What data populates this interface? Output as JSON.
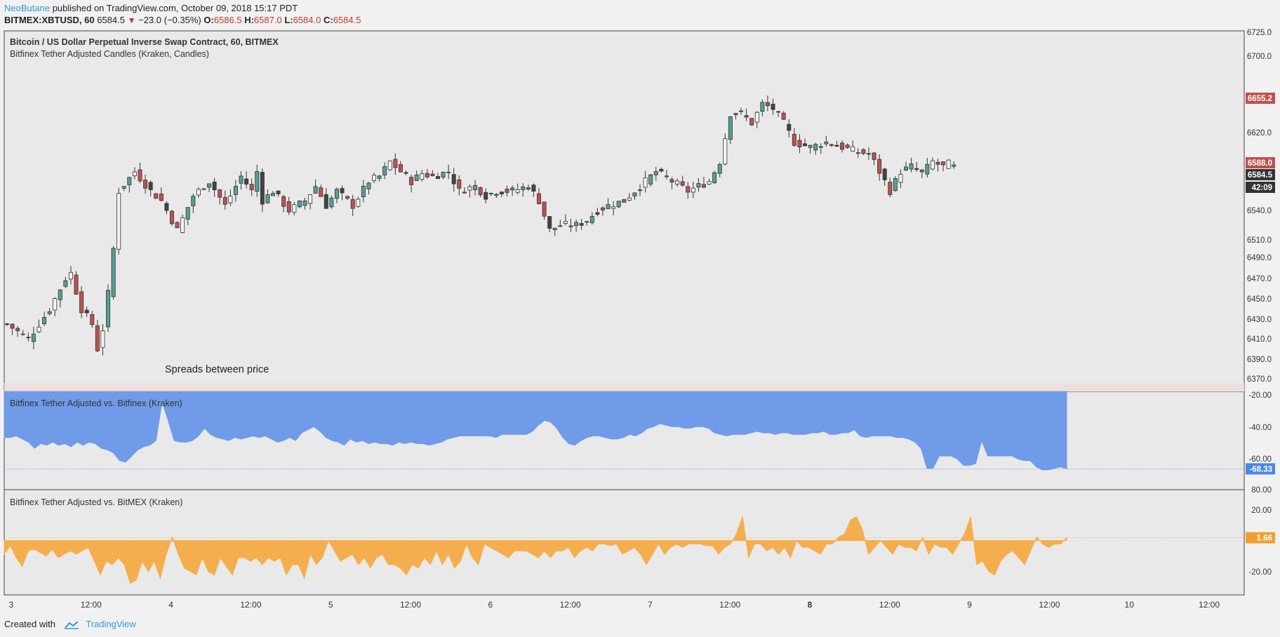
{
  "header": {
    "author": "NeoButane",
    "published": "published on TradingView.com, October 09, 2018 15:17 PDT",
    "symbol": "BITMEX:XBTUSD, 60",
    "last": "6584.5",
    "change": "−23.0 (−0.35%)",
    "o_label": "O:",
    "o": "6586.5",
    "h_label": "H:",
    "h": "6587.0",
    "l_label": "L:",
    "l": "6584.0",
    "c_label": "C:",
    "c": "6584.5"
  },
  "footer": {
    "created_with": "Created with",
    "brand": "TradingView"
  },
  "colors": {
    "up": "#53a193",
    "down": "#c0504d",
    "pane_bg": "#e9e9e9",
    "area_blue": "#6f9be8",
    "area_orange": "#f5ae4e"
  },
  "chart_data": [
    {
      "type": "candlestick",
      "title": "Bitcoin / US Dollar Perpetual Inverse Swap Contract, 60, BITMEX",
      "subtitle": "Bitfinex Tether Adjusted Candles (Kraken, Candles)",
      "annotation": "Spreads between price",
      "ylim": [
        6365,
        6727
      ],
      "y_ticks": [
        "6725.0",
        "6700.0",
        "6620.0",
        "6540.0",
        "6510.0",
        "6490.0",
        "6470.0",
        "6450.0",
        "6430.0",
        "6410.0",
        "6390.0",
        "6370.0"
      ],
      "price_labels": [
        "6655.2",
        "6588.0",
        "6584.5",
        "42:09"
      ],
      "x_ticks": [
        "3",
        "12:00",
        "4",
        "12:00",
        "5",
        "12:00",
        "6",
        "12:00",
        "7",
        "12:00",
        "8",
        "12:00",
        "9",
        "12:00",
        "10",
        "12:00"
      ],
      "close_path": [
        [
          0,
          6425
        ],
        [
          4,
          6410
        ],
        [
          8,
          6440
        ],
        [
          11,
          6470
        ],
        [
          12,
          6475
        ],
        [
          14,
          6440
        ],
        [
          16,
          6425
        ],
        [
          17,
          6400
        ],
        [
          18,
          6420
        ],
        [
          19,
          6455
        ],
        [
          20,
          6500
        ],
        [
          21,
          6560
        ],
        [
          24,
          6580
        ],
        [
          27,
          6560
        ],
        [
          29,
          6550
        ],
        [
          32,
          6520
        ],
        [
          35,
          6555
        ],
        [
          38,
          6570
        ],
        [
          41,
          6545
        ],
        [
          44,
          6575
        ],
        [
          46,
          6560
        ],
        [
          47,
          6580
        ],
        [
          48,
          6550
        ],
        [
          50,
          6560
        ],
        [
          53,
          6540
        ],
        [
          56,
          6550
        ],
        [
          58,
          6565
        ],
        [
          60,
          6545
        ],
        [
          62,
          6560
        ],
        [
          65,
          6545
        ],
        [
          68,
          6570
        ],
        [
          70,
          6575
        ],
        [
          72,
          6590
        ],
        [
          74,
          6580
        ],
        [
          76,
          6570
        ],
        [
          78,
          6578
        ],
        [
          80,
          6575
        ],
        [
          83,
          6580
        ],
        [
          85,
          6560
        ],
        [
          88,
          6565
        ],
        [
          90,
          6555
        ],
        [
          92,
          6560
        ],
        [
          95,
          6560
        ],
        [
          98,
          6565
        ],
        [
          100,
          6550
        ],
        [
          102,
          6520
        ],
        [
          104,
          6525
        ],
        [
          107,
          6525
        ],
        [
          109,
          6530
        ],
        [
          111,
          6540
        ],
        [
          113,
          6545
        ],
        [
          116,
          6550
        ],
        [
          118,
          6560
        ],
        [
          120,
          6570
        ],
        [
          122,
          6580
        ],
        [
          125,
          6570
        ],
        [
          128,
          6560
        ],
        [
          130,
          6565
        ],
        [
          132,
          6570
        ],
        [
          134,
          6590
        ],
        [
          136,
          6640
        ],
        [
          138,
          6640
        ],
        [
          140,
          6630
        ],
        [
          142,
          6650
        ],
        [
          144,
          6645
        ],
        [
          146,
          6630
        ],
        [
          148,
          6610
        ],
        [
          151,
          6605
        ],
        [
          154,
          6610
        ],
        [
          157,
          6605
        ],
        [
          160,
          6600
        ],
        [
          162,
          6598
        ],
        [
          163,
          6590
        ],
        [
          165,
          6570
        ],
        [
          166,
          6560
        ],
        [
          168,
          6580
        ],
        [
          170,
          6585
        ],
        [
          172,
          6578
        ],
        [
          174,
          6590
        ],
        [
          176,
          6585
        ],
        [
          177,
          6588
        ],
        [
          178,
          6584.5
        ]
      ]
    },
    {
      "type": "area",
      "title": "Bitfinex Tether Adjusted vs. Bitfinex (Kraken)",
      "ylim": [
        -80,
        -20
      ],
      "y_ticks": [
        "-20.00",
        "-40.00",
        "-60.00",
        "80.00"
      ],
      "last_label": "-68.33",
      "x_range": [
        0,
        177
      ],
      "values": [
        -48,
        -48,
        -47,
        -49,
        -51,
        -55,
        -52,
        -53,
        -51,
        -53,
        -52,
        -54,
        -51,
        -53,
        -51,
        -52,
        -55,
        -56,
        -58,
        -63,
        -64,
        -60,
        -56,
        -54,
        -53,
        -50,
        -25,
        -37,
        -50,
        -51,
        -51,
        -50,
        -47,
        -42,
        -46,
        -48,
        -49,
        -50,
        -48,
        -49,
        -48,
        -47,
        -48,
        -47,
        -49,
        -51,
        -50,
        -48,
        -50,
        -45,
        -43,
        -41,
        -44,
        -48,
        -50,
        -51,
        -53,
        -49,
        -51,
        -50,
        -52,
        -51,
        -52,
        -52,
        -53,
        -51,
        -52,
        -51,
        -52,
        -52,
        -53,
        -52,
        -51,
        -49,
        -48,
        -47,
        -47,
        -47,
        -47,
        -47,
        -47,
        -48,
        -46,
        -46,
        -46,
        -46,
        -46,
        -44,
        -40,
        -37,
        -38,
        -42,
        -48,
        -52,
        -53,
        -50,
        -48,
        -47,
        -47,
        -48,
        -49,
        -49,
        -48,
        -46,
        -47,
        -45,
        -42,
        -41,
        -39,
        -40,
        -41,
        -41,
        -42,
        -42,
        -41,
        -41,
        -42,
        -45,
        -46,
        -47,
        -46,
        -46,
        -46,
        -45,
        -44,
        -45,
        -45,
        -46,
        -45,
        -45,
        -46,
        -46,
        -46,
        -45,
        -45,
        -44,
        -46,
        -46,
        -45,
        -45,
        -43,
        -47,
        -48,
        -47,
        -47,
        -47,
        -47,
        -48,
        -48,
        -49,
        -51,
        -55,
        -68,
        -68,
        -60,
        -60,
        -60,
        -62,
        -66,
        -66,
        -65,
        -50,
        -60,
        -60,
        -60,
        -60,
        -60,
        -62,
        -63,
        -63,
        -67,
        -69,
        -69,
        -68,
        -67,
        -68.33
      ]
    },
    {
      "type": "area",
      "title": "Bitfinex Tether Adjusted vs. BitMEX (Kraken)",
      "ylim": [
        -30,
        28
      ],
      "y_ticks": [
        "20.00",
        "-20.00"
      ],
      "last_label": "1.66",
      "x_range": [
        0,
        177
      ],
      "values": [
        -8,
        -3,
        -10,
        -15,
        -6,
        -5,
        -7,
        -9,
        -5,
        -10,
        -8,
        -6,
        -8,
        -6,
        -4,
        -12,
        -20,
        -12,
        -14,
        -10,
        -14,
        -25,
        -23,
        -12,
        -18,
        -12,
        -22,
        -8,
        2,
        -8,
        -16,
        -18,
        -20,
        -10,
        -18,
        -20,
        -10,
        -15,
        -20,
        -10,
        -10,
        -12,
        -10,
        -14,
        -10,
        -12,
        -10,
        -20,
        -14,
        -14,
        -22,
        -8,
        -14,
        -10,
        0,
        -6,
        -12,
        -10,
        -8,
        -14,
        -10,
        -16,
        -10,
        -8,
        -14,
        -14,
        -16,
        -20,
        -14,
        -16,
        -10,
        -14,
        -6,
        -14,
        -8,
        -16,
        -12,
        -2,
        -10,
        -14,
        -2,
        -4,
        -6,
        -8,
        -10,
        -6,
        -6,
        -6,
        -8,
        -10,
        -6,
        -10,
        -6,
        -6,
        -4,
        -10,
        -6,
        -4,
        -6,
        -2,
        -2,
        -3,
        -2,
        -8,
        -6,
        -4,
        -8,
        -14,
        -8,
        -2,
        -8,
        -4,
        -2,
        -4,
        -2,
        -2,
        -2,
        -3,
        -3,
        -8,
        -4,
        -2,
        4,
        14,
        -10,
        -2,
        -2,
        -6,
        -4,
        -8,
        -4,
        -10,
        0,
        -4,
        -4,
        -6,
        -8,
        -2,
        -2,
        2,
        4,
        12,
        14,
        6,
        -8,
        -4,
        0,
        -4,
        -8,
        -2,
        -4,
        -4,
        -6,
        2,
        -8,
        -2,
        -4,
        -4,
        -8,
        -2,
        4,
        14,
        -14,
        -12,
        -18,
        -20,
        -12,
        -8,
        -6,
        -10,
        -14,
        -6,
        2,
        -2,
        -4,
        -2,
        -2,
        1.66
      ]
    }
  ]
}
